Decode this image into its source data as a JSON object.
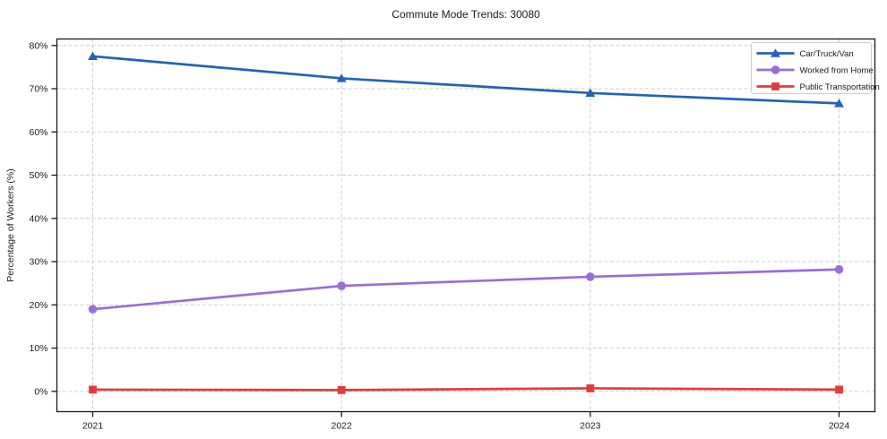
{
  "title": "Commute Mode Trends: 30080",
  "chart_data": {
    "type": "line",
    "title": "Commute Mode Trends: 30080",
    "xlabel": "",
    "ylabel": "Percentage of Workers (%)",
    "x": [
      2021,
      2022,
      2023,
      2024
    ],
    "x_labels": [
      "2021",
      "2022",
      "2023",
      "2024"
    ],
    "series": [
      {
        "name": "Car/Truck/Van",
        "color": "#2362b8",
        "marker": "triangle",
        "values": [
          77.5,
          72.4,
          69.0,
          66.6
        ]
      },
      {
        "name": "Worked from Home",
        "color": "#9a6dd7",
        "marker": "circle",
        "values": [
          19.0,
          24.4,
          26.5,
          28.2
        ]
      },
      {
        "name": "Public Transportation",
        "color": "#e13c3c",
        "marker": "square",
        "values": [
          0.4,
          0.3,
          0.7,
          0.4
        ]
      }
    ],
    "ylim": [
      -4.7,
      81.5
    ],
    "yticks": [
      0,
      10,
      20,
      30,
      40,
      50,
      60,
      70,
      80
    ],
    "ytick_labels": [
      "0%",
      "10%",
      "20%",
      "30%",
      "40%",
      "50%",
      "60%",
      "70%",
      "80%"
    ],
    "grid": "dashed",
    "legend_position": "upper right",
    "styles": {
      "grid_color": "#cfcfcf",
      "spine_color": "#1a1a1a",
      "text_color": "#1a1a1a",
      "legend_border_color": "#cccccc",
      "legend_bg_color": "#ffffff"
    }
  }
}
